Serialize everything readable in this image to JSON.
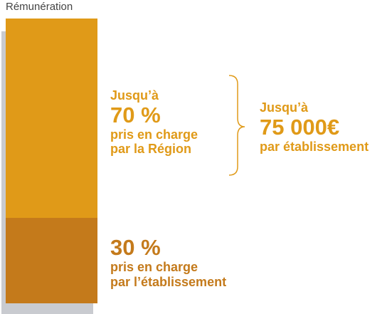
{
  "chart_data": {
    "type": "bar",
    "stacked": true,
    "title": "Rémunération",
    "segments": [
      {
        "value": 70,
        "color": "#e09a18",
        "line1": "Jusqu’à",
        "line2": "70 %",
        "line3": "pris en charge",
        "line4": "par la Région"
      },
      {
        "value": 30,
        "color": "#c47a1b",
        "line1": "30 %",
        "line2": "pris en charge",
        "line3": "par l’établissement"
      }
    ],
    "ylim": [
      0,
      100
    ],
    "annotation": {
      "line1": "Jusqu’à",
      "line2": "75 000€",
      "line3": "par établissement",
      "color": "#e09a18"
    },
    "shadow_color": "#c9cbd0"
  }
}
